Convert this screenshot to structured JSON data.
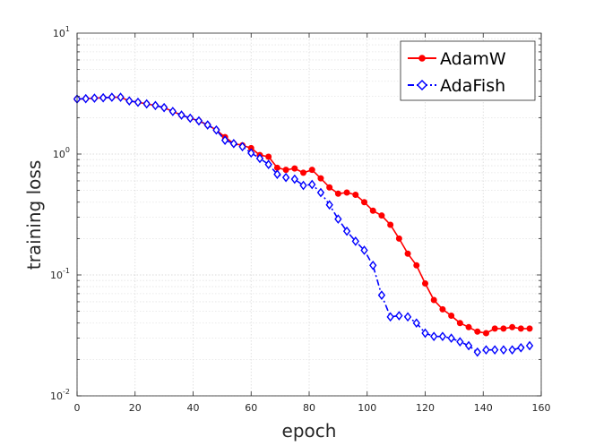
{
  "chart_data": {
    "type": "line",
    "title": "",
    "xlabel": "epoch",
    "ylabel": "training loss",
    "xlim": [
      0,
      160
    ],
    "ylim": [
      0.01,
      10
    ],
    "yscale": "log",
    "grid": true,
    "x_ticks": [
      0,
      20,
      40,
      60,
      80,
      100,
      120,
      140,
      160
    ],
    "x_tick_labels": [
      "0",
      "20",
      "40",
      "60",
      "80",
      "100",
      "120",
      "140",
      "160"
    ],
    "y_ticks": [
      {
        "value": 0.01,
        "base": "10",
        "exp": "-2"
      },
      {
        "value": 0.1,
        "base": "10",
        "exp": "-1"
      },
      {
        "value": 1,
        "base": "10",
        "exp": "0"
      },
      {
        "value": 10,
        "base": "10",
        "exp": "1"
      }
    ],
    "legend_position": "top-right",
    "series": [
      {
        "name": "AdamW",
        "color": "#ff0000",
        "linestyle": "solid",
        "marker": "circle",
        "x": [
          0,
          3,
          6,
          9,
          12,
          15,
          18,
          21,
          24,
          27,
          30,
          33,
          36,
          39,
          42,
          45,
          48,
          51,
          54,
          57,
          60,
          63,
          66,
          69,
          72,
          75,
          78,
          81,
          84,
          87,
          90,
          93,
          96,
          99,
          102,
          105,
          108,
          111,
          114,
          117,
          120,
          123,
          126,
          129,
          132,
          135,
          138,
          141,
          144,
          147,
          150,
          153,
          156
        ],
        "y": [
          2.85,
          2.87,
          2.9,
          2.92,
          2.95,
          2.95,
          2.75,
          2.68,
          2.6,
          2.52,
          2.42,
          2.25,
          2.1,
          1.98,
          1.88,
          1.74,
          1.58,
          1.38,
          1.22,
          1.18,
          1.12,
          0.98,
          0.95,
          0.77,
          0.74,
          0.76,
          0.7,
          0.74,
          0.63,
          0.53,
          0.47,
          0.48,
          0.46,
          0.4,
          0.34,
          0.31,
          0.26,
          0.2,
          0.15,
          0.12,
          0.085,
          0.062,
          0.052,
          0.046,
          0.04,
          0.037,
          0.034,
          0.033,
          0.036,
          0.036,
          0.037,
          0.036,
          0.036
        ]
      },
      {
        "name": "AdaFish",
        "color": "#0000ff",
        "linestyle": "dash-dot",
        "marker": "diamond",
        "x": [
          0,
          3,
          6,
          9,
          12,
          15,
          18,
          21,
          24,
          27,
          30,
          33,
          36,
          39,
          42,
          45,
          48,
          51,
          54,
          57,
          60,
          63,
          66,
          69,
          72,
          75,
          78,
          81,
          84,
          87,
          90,
          93,
          96,
          99,
          102,
          105,
          108,
          111,
          114,
          117,
          120,
          123,
          126,
          129,
          132,
          135,
          138,
          141,
          144,
          147,
          150,
          153,
          156
        ],
        "y": [
          2.85,
          2.87,
          2.9,
          2.92,
          2.95,
          2.95,
          2.75,
          2.68,
          2.6,
          2.52,
          2.42,
          2.25,
          2.1,
          1.98,
          1.88,
          1.74,
          1.58,
          1.3,
          1.22,
          1.15,
          1.02,
          0.92,
          0.82,
          0.68,
          0.64,
          0.62,
          0.55,
          0.56,
          0.48,
          0.38,
          0.29,
          0.23,
          0.19,
          0.16,
          0.12,
          0.068,
          0.045,
          0.046,
          0.045,
          0.04,
          0.033,
          0.031,
          0.031,
          0.03,
          0.028,
          0.026,
          0.023,
          0.024,
          0.024,
          0.024,
          0.024,
          0.025,
          0.026
        ]
      }
    ]
  }
}
